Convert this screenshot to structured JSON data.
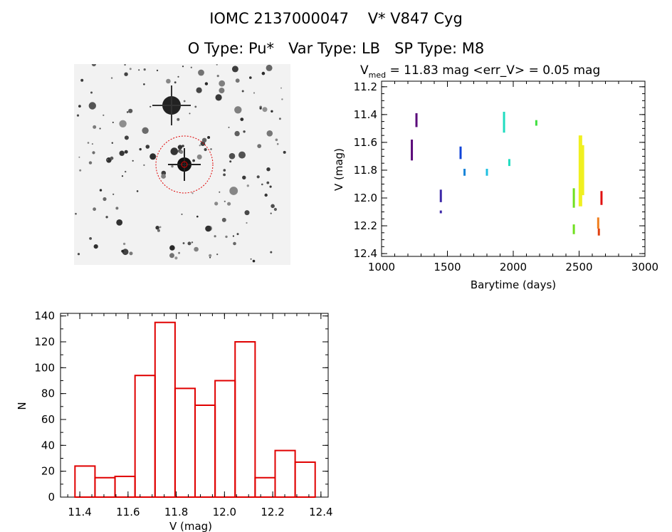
{
  "header": {
    "title_line1": "IOMC 2137000047    V* V847 Cyg",
    "title_line2": "O Type: Pu*   Var Type: LB   SP Type: M8"
  },
  "image_panel": {
    "alt": "DSS finder chart",
    "star_symbol": "target-star-icon"
  },
  "chart_data": [
    {
      "type": "scatter",
      "id": "lightcurve",
      "title": "V",
      "title_subscript": "med",
      "title_rest": " = 11.83 mag <err_V> = 0.05 mag",
      "xlabel": "Barytime (days)",
      "ylabel": "V (mag)",
      "xlim": [
        1000,
        3000
      ],
      "ylim": [
        12.42,
        11.16
      ],
      "xticks": [
        "1000",
        "1500",
        "2000",
        "2500",
        "3000"
      ],
      "xtick_values": [
        1000,
        1500,
        2000,
        2500,
        3000
      ],
      "yticks": [
        "11.2",
        "11.4",
        "11.6",
        "11.8",
        "12.0",
        "12.2",
        "12.4"
      ],
      "ytick_values": [
        11.2,
        11.4,
        11.6,
        11.8,
        12.0,
        12.2,
        12.4
      ],
      "series": [
        {
          "color": "#5b0a7a",
          "segments": [
            [
              1230,
              11.58,
              11.73
            ],
            [
              1265,
              11.39,
              11.49
            ]
          ]
        },
        {
          "color": "#3c28a8",
          "segments": [
            [
              1450,
              11.94,
              12.03
            ],
            [
              1450,
              12.09,
              12.11
            ]
          ]
        },
        {
          "color": "#1044d8",
          "segments": [
            [
              1600,
              11.63,
              11.72
            ]
          ]
        },
        {
          "color": "#1884d8",
          "segments": [
            [
              1630,
              11.79,
              11.84
            ]
          ]
        },
        {
          "color": "#20c0e0",
          "segments": [
            [
              1800,
              11.79,
              11.84
            ]
          ]
        },
        {
          "color": "#20dcc0",
          "segments": [
            [
              1930,
              11.38,
              11.53
            ],
            [
              1970,
              11.72,
              11.77
            ]
          ]
        },
        {
          "color": "#40e040",
          "segments": [
            [
              2175,
              11.44,
              11.48
            ]
          ]
        },
        {
          "color": "#70e020",
          "segments": [
            [
              2460,
              11.93,
              12.07
            ],
            [
              2460,
              12.19,
              12.26
            ]
          ]
        },
        {
          "color": "#f0f020",
          "segments": [
            [
              2510,
              11.55,
              12.06
            ],
            [
              2525,
              11.62,
              11.98
            ]
          ]
        },
        {
          "color": "#f08020",
          "segments": [
            [
              2645,
              12.14,
              12.22
            ]
          ]
        },
        {
          "color": "#e04010",
          "segments": [
            [
              2650,
              12.22,
              12.27
            ]
          ]
        },
        {
          "color": "#e01010",
          "segments": [
            [
              2670,
              11.95,
              12.05
            ]
          ]
        }
      ]
    },
    {
      "type": "bar",
      "id": "histogram",
      "xlabel": "V (mag)",
      "ylabel": "N",
      "xlim": [
        11.32,
        12.43
      ],
      "ylim": [
        0,
        142
      ],
      "xticks": [
        "11.4",
        "11.6",
        "11.8",
        "12.0",
        "12.2",
        "12.4"
      ],
      "xtick_values": [
        11.4,
        11.6,
        11.8,
        12.0,
        12.2,
        12.4
      ],
      "yticks": [
        "0",
        "20",
        "40",
        "60",
        "80",
        "100",
        "120",
        "140"
      ],
      "ytick_values": [
        0,
        20,
        40,
        60,
        80,
        100,
        120,
        140
      ],
      "bin_width": 0.083,
      "bin_start": 11.38,
      "values": [
        24,
        15,
        16,
        94,
        135,
        84,
        71,
        90,
        120,
        15,
        36,
        27
      ],
      "color": "#e00000"
    }
  ]
}
